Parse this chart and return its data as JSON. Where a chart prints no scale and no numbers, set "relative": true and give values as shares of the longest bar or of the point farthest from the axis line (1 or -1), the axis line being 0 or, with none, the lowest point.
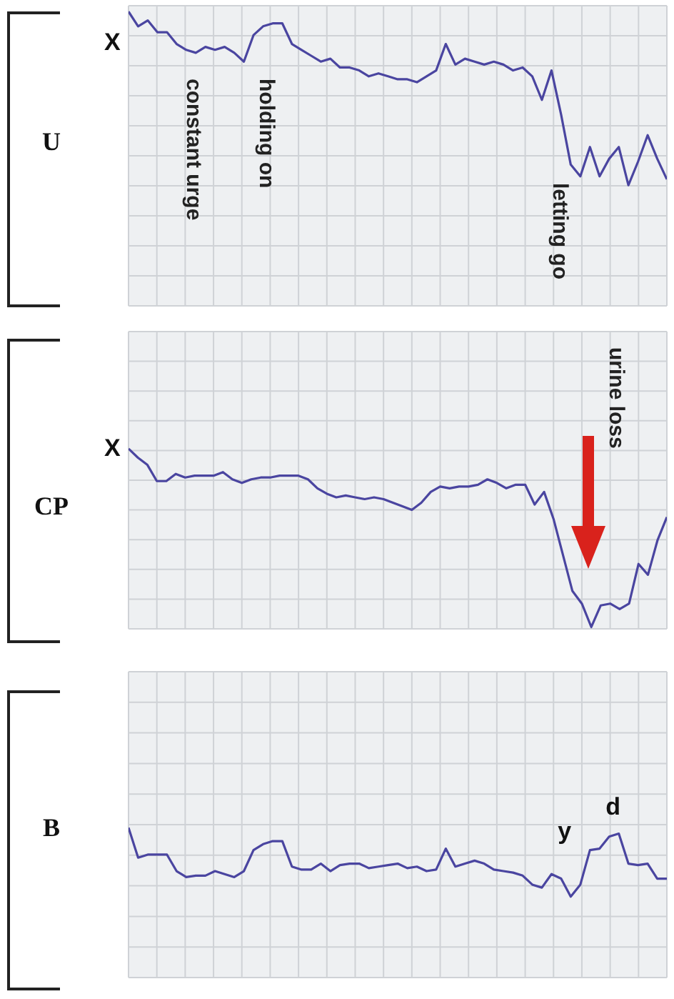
{
  "chart_data": [
    {
      "type": "line",
      "relative": true,
      "ylabel": "U",
      "grid": true,
      "categories": [
        null,
        null,
        null,
        null,
        null,
        null,
        null,
        null,
        null,
        null,
        null,
        null,
        null,
        null,
        null,
        null,
        null,
        null,
        null,
        null,
        null,
        null,
        null,
        null,
        null,
        null,
        null,
        null,
        null,
        null,
        null,
        null,
        null,
        null,
        null,
        null,
        null,
        null,
        null,
        null,
        null,
        null,
        null,
        null,
        null,
        null,
        null,
        null,
        null,
        null,
        null,
        null,
        null,
        null,
        null,
        null,
        null
      ],
      "series": [
        {
          "color": "#4a45a0",
          "values": [
            1.0,
            0.95,
            0.97,
            0.93,
            0.93,
            0.89,
            0.87,
            0.86,
            0.88,
            0.87,
            0.88,
            0.86,
            0.83,
            0.92,
            0.95,
            0.96,
            0.96,
            0.89,
            0.87,
            0.85,
            0.83,
            0.84,
            0.81,
            0.81,
            0.8,
            0.78,
            0.79,
            0.78,
            0.77,
            0.77,
            0.76,
            0.78,
            0.8,
            0.89,
            0.82,
            0.84,
            0.83,
            0.82,
            0.83,
            0.82,
            0.8,
            0.81,
            0.78,
            0.7,
            0.8,
            0.65,
            0.48,
            0.44,
            0.54,
            0.44,
            0.5,
            0.54,
            0.41,
            0.49,
            0.58,
            0.5,
            0.43
          ]
        }
      ],
      "annotations": [
        "X",
        "constant urge",
        "holding on",
        "letting go"
      ]
    },
    {
      "type": "line",
      "relative": true,
      "ylabel": "CP",
      "grid": true,
      "categories": [
        null,
        null,
        null,
        null,
        null,
        null,
        null,
        null,
        null,
        null,
        null,
        null,
        null,
        null,
        null,
        null,
        null,
        null,
        null,
        null,
        null,
        null,
        null,
        null,
        null,
        null,
        null,
        null,
        null,
        null,
        null,
        null,
        null,
        null,
        null,
        null,
        null,
        null,
        null,
        null,
        null,
        null,
        null,
        null,
        null,
        null,
        null,
        null,
        null,
        null,
        null,
        null,
        null,
        null,
        null,
        null,
        null,
        null
      ],
      "series": [
        {
          "color": "#4a45a0",
          "values": [
            1.0,
            0.95,
            0.91,
            0.82,
            0.82,
            0.86,
            0.84,
            0.85,
            0.85,
            0.85,
            0.87,
            0.83,
            0.81,
            0.83,
            0.84,
            0.84,
            0.85,
            0.85,
            0.85,
            0.83,
            0.78,
            0.75,
            0.73,
            0.74,
            0.73,
            0.72,
            0.73,
            0.72,
            0.7,
            0.68,
            0.66,
            0.7,
            0.76,
            0.79,
            0.78,
            0.79,
            0.79,
            0.8,
            0.83,
            0.81,
            0.78,
            0.8,
            0.8,
            0.69,
            0.76,
            0.61,
            0.41,
            0.21,
            0.14,
            0.01,
            0.13,
            0.14,
            0.11,
            0.14,
            0.36,
            0.3,
            0.49,
            0.62
          ]
        }
      ],
      "annotations": [
        "X",
        "urine loss"
      ]
    },
    {
      "type": "line",
      "relative": true,
      "ylabel": "B",
      "grid": true,
      "categories": [
        null,
        null,
        null,
        null,
        null,
        null,
        null,
        null,
        null,
        null,
        null,
        null,
        null,
        null,
        null,
        null,
        null,
        null,
        null,
        null,
        null,
        null,
        null,
        null,
        null,
        null,
        null,
        null,
        null,
        null,
        null,
        null,
        null,
        null,
        null,
        null,
        null,
        null,
        null,
        null,
        null,
        null,
        null,
        null,
        null,
        null,
        null,
        null,
        null,
        null,
        null,
        null,
        null,
        null,
        null,
        null,
        null
      ],
      "series": [
        {
          "color": "#4a45a0",
          "values": [
            1.0,
            0.8,
            0.82,
            0.82,
            0.82,
            0.71,
            0.67,
            0.68,
            0.68,
            0.71,
            0.69,
            0.67,
            0.71,
            0.85,
            0.89,
            0.91,
            0.91,
            0.74,
            0.72,
            0.72,
            0.76,
            0.71,
            0.75,
            0.76,
            0.76,
            0.73,
            0.74,
            0.75,
            0.76,
            0.73,
            0.74,
            0.71,
            0.72,
            0.86,
            0.74,
            0.76,
            0.78,
            0.76,
            0.72,
            0.71,
            0.7,
            0.68,
            0.62,
            0.6,
            0.69,
            0.66,
            0.54,
            0.62,
            0.85,
            0.86,
            0.94,
            0.96,
            0.76,
            0.75,
            0.76,
            0.66,
            0.66
          ]
        }
      ],
      "annotations": [
        "y",
        "d"
      ]
    }
  ]
}
